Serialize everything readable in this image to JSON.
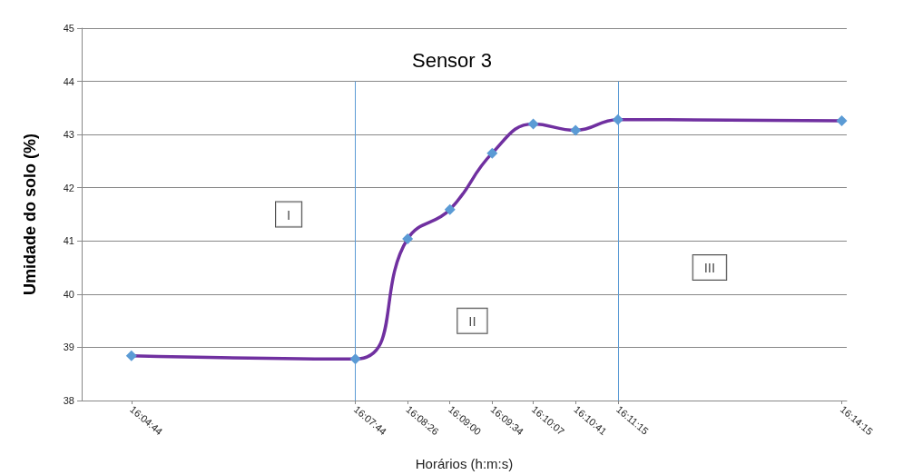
{
  "chart_data": {
    "type": "line",
    "title": "Sensor 3",
    "xlabel": "Horários (h:m:s)",
    "ylabel": "Umidade do solo (%)",
    "x": [
      16.078889,
      16.128889,
      16.140556,
      16.15,
      16.159444,
      16.168611,
      16.178056,
      16.1875,
      16.2375
    ],
    "series": [
      {
        "color": "#7030a0",
        "colors": [
          "#5b9bd5",
          "#5b9bd5",
          "#5b9bd5",
          "#5b9bd5",
          "#5b9bd5",
          "#5b9bd5",
          "#5b9bd5",
          "#5b9bd5",
          "#5b9bd5"
        ],
        "values": [
          38.84,
          38.78,
          41.04,
          41.59,
          42.65,
          43.2,
          43.08,
          43.28,
          43.26
        ]
      }
    ],
    "marker": "diamond",
    "xlim": [
      16.067778,
      16.238611
    ],
    "ylim": [
      38,
      45
    ],
    "yticks": [
      38,
      39,
      40,
      41,
      42,
      43,
      44,
      45
    ],
    "xticks": [
      {
        "value": 16.078889,
        "label": "16:04:44"
      },
      {
        "value": 16.128889,
        "label": "16:07:44"
      },
      {
        "value": 16.140556,
        "label": "16:08:26"
      },
      {
        "value": 16.15,
        "label": "16:09:00"
      },
      {
        "value": 16.159444,
        "label": "16:09:34"
      },
      {
        "value": 16.168611,
        "label": "16:10:07"
      },
      {
        "value": 16.178056,
        "label": "16:10:41"
      },
      {
        "value": 16.1875,
        "label": "16:11:15"
      },
      {
        "value": 16.2375,
        "label": "16:14:15"
      }
    ],
    "grid": "y",
    "ref_lines": [
      {
        "axis": "x",
        "value": 16.128889,
        "color": "#5b9bd5"
      },
      {
        "axis": "x",
        "value": 16.1875,
        "color": "#5b9bd5"
      }
    ],
    "annotations": [
      {
        "text": "I",
        "x": 16.114,
        "y": 41.5
      },
      {
        "text": "II",
        "x": 16.155,
        "y": 39.5
      },
      {
        "text": "III",
        "x": 16.208,
        "y": 40.5
      }
    ]
  }
}
